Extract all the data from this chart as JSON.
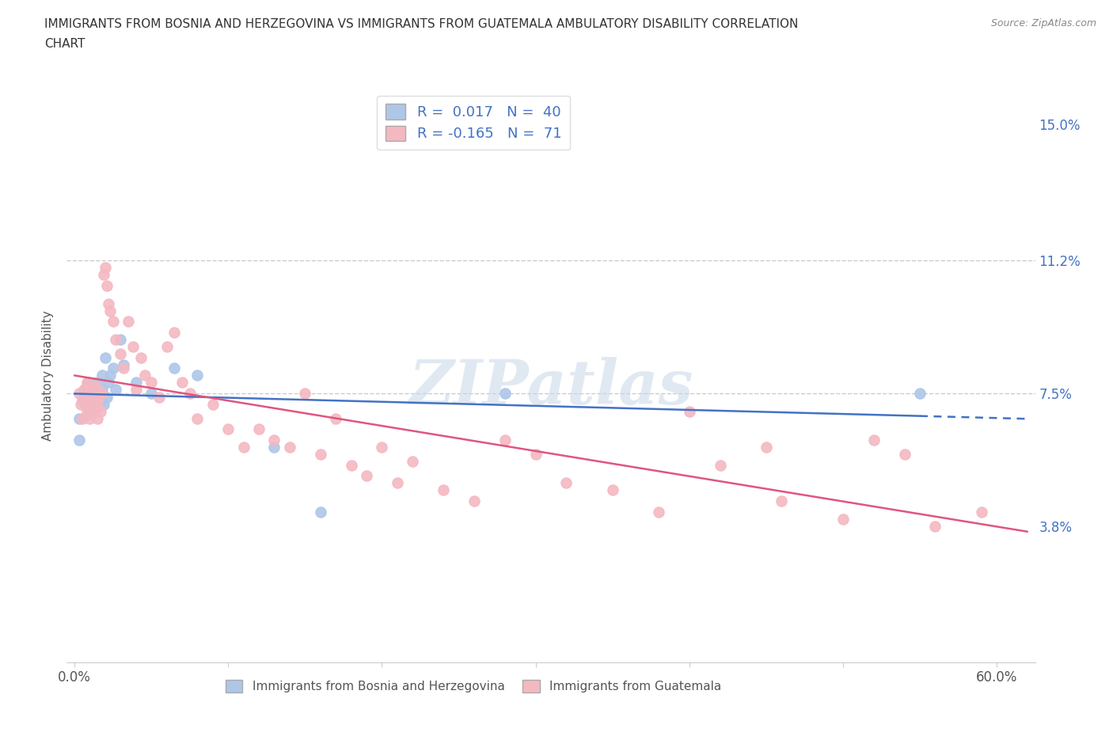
{
  "title_line1": "IMMIGRANTS FROM BOSNIA AND HERZEGOVINA VS IMMIGRANTS FROM GUATEMALA AMBULATORY DISABILITY CORRELATION",
  "title_line2": "CHART",
  "source": "Source: ZipAtlas.com",
  "ylabel": "Ambulatory Disability",
  "xlim": [
    -0.005,
    0.625
  ],
  "ylim": [
    0.0,
    0.16
  ],
  "xtick_positions": [
    0.0,
    0.1,
    0.2,
    0.3,
    0.4,
    0.5,
    0.6
  ],
  "xticklabels": [
    "0.0%",
    "",
    "",
    "",
    "",
    "",
    "60.0%"
  ],
  "ytick_positions": [
    0.038,
    0.075,
    0.112,
    0.15
  ],
  "ytick_labels": [
    "3.8%",
    "7.5%",
    "11.2%",
    "15.0%"
  ],
  "hlines": [
    0.112,
    0.075
  ],
  "hline_color": "#cccccc",
  "R1": 0.017,
  "N1": 40,
  "R2": -0.165,
  "N2": 71,
  "color1": "#aec6e8",
  "color2": "#f4b8c1",
  "trendline_color1": "#4472c4",
  "trendline_color2": "#e05580",
  "watermark": "ZIPatlas",
  "background_color": "#ffffff",
  "bos_x": [
    0.003,
    0.005,
    0.006,
    0.007,
    0.008,
    0.008,
    0.009,
    0.009,
    0.01,
    0.01,
    0.011,
    0.011,
    0.012,
    0.013,
    0.013,
    0.014,
    0.015,
    0.015,
    0.016,
    0.017,
    0.018,
    0.018,
    0.019,
    0.02,
    0.021,
    0.022,
    0.023,
    0.025,
    0.027,
    0.03,
    0.032,
    0.04,
    0.05,
    0.065,
    0.08,
    0.13,
    0.16,
    0.28,
    0.003,
    0.55
  ],
  "bos_y": [
    0.068,
    0.073,
    0.075,
    0.072,
    0.074,
    0.077,
    0.071,
    0.078,
    0.07,
    0.076,
    0.069,
    0.075,
    0.073,
    0.072,
    0.076,
    0.074,
    0.071,
    0.078,
    0.075,
    0.073,
    0.08,
    0.076,
    0.072,
    0.085,
    0.074,
    0.078,
    0.08,
    0.082,
    0.076,
    0.09,
    0.083,
    0.078,
    0.075,
    0.082,
    0.08,
    0.06,
    0.042,
    0.075,
    0.062,
    0.075
  ],
  "guat_x": [
    0.003,
    0.004,
    0.005,
    0.006,
    0.007,
    0.008,
    0.008,
    0.009,
    0.01,
    0.01,
    0.011,
    0.012,
    0.013,
    0.013,
    0.014,
    0.015,
    0.015,
    0.016,
    0.017,
    0.018,
    0.019,
    0.02,
    0.021,
    0.022,
    0.023,
    0.025,
    0.027,
    0.03,
    0.032,
    0.035,
    0.038,
    0.04,
    0.043,
    0.046,
    0.05,
    0.055,
    0.06,
    0.065,
    0.07,
    0.075,
    0.08,
    0.09,
    0.1,
    0.11,
    0.12,
    0.13,
    0.14,
    0.15,
    0.16,
    0.17,
    0.18,
    0.19,
    0.2,
    0.21,
    0.22,
    0.24,
    0.26,
    0.28,
    0.3,
    0.32,
    0.35,
    0.38,
    0.4,
    0.42,
    0.45,
    0.46,
    0.5,
    0.52,
    0.54,
    0.56,
    0.59
  ],
  "guat_y": [
    0.075,
    0.072,
    0.068,
    0.076,
    0.073,
    0.07,
    0.078,
    0.074,
    0.068,
    0.076,
    0.072,
    0.075,
    0.07,
    0.073,
    0.077,
    0.072,
    0.068,
    0.074,
    0.07,
    0.075,
    0.108,
    0.11,
    0.105,
    0.1,
    0.098,
    0.095,
    0.09,
    0.086,
    0.082,
    0.095,
    0.088,
    0.076,
    0.085,
    0.08,
    0.078,
    0.074,
    0.088,
    0.092,
    0.078,
    0.075,
    0.068,
    0.072,
    0.065,
    0.06,
    0.065,
    0.062,
    0.06,
    0.075,
    0.058,
    0.068,
    0.055,
    0.052,
    0.06,
    0.05,
    0.056,
    0.048,
    0.045,
    0.062,
    0.058,
    0.05,
    0.048,
    0.042,
    0.07,
    0.055,
    0.06,
    0.045,
    0.04,
    0.062,
    0.058,
    0.038,
    0.042
  ]
}
